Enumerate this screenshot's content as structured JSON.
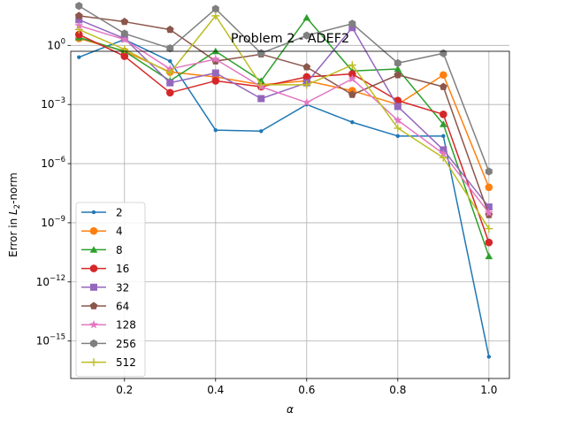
{
  "chart_data": {
    "type": "line",
    "title": "Problem 2 - ADEF2",
    "xlabel": "α",
    "ylabel_prefix": "Error in ",
    "ylabel_L": "L",
    "ylabel_sub": "2",
    "ylabel_suffix": "-norm",
    "yscale": "log",
    "xlim": [
      0.082,
      1.045
    ],
    "ylim_log10": [
      -16.9,
      -0.3
    ],
    "grid": true,
    "legend_position": "lower-left",
    "x_ticks": [
      {
        "value": 0.2,
        "label": "0.2"
      },
      {
        "value": 0.4,
        "label": "0.4"
      },
      {
        "value": 0.6,
        "label": "0.6"
      },
      {
        "value": 0.8,
        "label": "0.8"
      },
      {
        "value": 1.0,
        "label": "1.0"
      }
    ],
    "y_ticks": [
      {
        "exp": 0,
        "base": "10",
        "sup": "0"
      },
      {
        "exp": -3,
        "base": "10",
        "sup": "−3"
      },
      {
        "exp": -6,
        "base": "10",
        "sup": "−6"
      },
      {
        "exp": -9,
        "base": "10",
        "sup": "−9"
      },
      {
        "exp": -12,
        "base": "10",
        "sup": "−12"
      },
      {
        "exp": -15,
        "base": "10",
        "sup": "−15"
      }
    ],
    "x": [
      0.1,
      0.2,
      0.3,
      0.4,
      0.5,
      0.6,
      0.7,
      0.8,
      0.9,
      1.0
    ],
    "series": [
      {
        "name": "2",
        "color": "#1f77b4",
        "marker": "point",
        "log10_values": [
          -0.6,
          0.3,
          -0.8,
          -4.3,
          -4.35,
          -3.0,
          -3.9,
          -4.6,
          -4.6,
          -15.8
        ]
      },
      {
        "name": "4",
        "color": "#ff7f0e",
        "marker": "circle",
        "log10_values": [
          0.35,
          -0.3,
          -1.35,
          -1.6,
          -2.0,
          -1.8,
          -2.3,
          -3.0,
          -1.5,
          -7.2
        ]
      },
      {
        "name": "8",
        "color": "#2ca02c",
        "marker": "triangle",
        "log10_values": [
          0.4,
          -0.3,
          -1.8,
          -0.3,
          -1.8,
          1.4,
          -1.3,
          -1.2,
          -4.0,
          -10.7
        ]
      },
      {
        "name": "16",
        "color": "#d62728",
        "marker": "circle",
        "log10_values": [
          0.55,
          -0.55,
          -2.4,
          -1.8,
          -2.1,
          -1.6,
          -1.45,
          -2.8,
          -3.5,
          -10.0
        ]
      },
      {
        "name": "32",
        "color": "#9467bd",
        "marker": "square",
        "log10_values": [
          1.3,
          0.35,
          -1.9,
          -1.4,
          -2.7,
          -1.9,
          0.9,
          -3.1,
          -5.3,
          -8.2
        ]
      },
      {
        "name": "64",
        "color": "#8c564b",
        "marker": "pentagon",
        "log10_values": [
          1.5,
          1.2,
          0.8,
          -0.8,
          -0.45,
          -1.1,
          -2.5,
          -1.5,
          -2.1,
          -8.6
        ]
      },
      {
        "name": "128",
        "color": "#e377c2",
        "marker": "star",
        "log10_values": [
          1.0,
          0.3,
          -1.2,
          -0.7,
          -2.1,
          -2.9,
          -1.7,
          -3.8,
          -5.5,
          -8.5
        ]
      },
      {
        "name": "256",
        "color": "#7f7f7f",
        "marker": "hexagon",
        "log10_values": [
          2.0,
          0.6,
          -0.15,
          1.85,
          -0.4,
          0.5,
          1.1,
          -0.9,
          -0.4,
          -6.4
        ]
      },
      {
        "name": "512",
        "color": "#bcbd22",
        "marker": "plus",
        "log10_values": [
          0.8,
          -0.2,
          -1.4,
          1.5,
          -2.0,
          -2.0,
          -1.0,
          -4.2,
          -5.7,
          -9.3
        ]
      }
    ]
  }
}
